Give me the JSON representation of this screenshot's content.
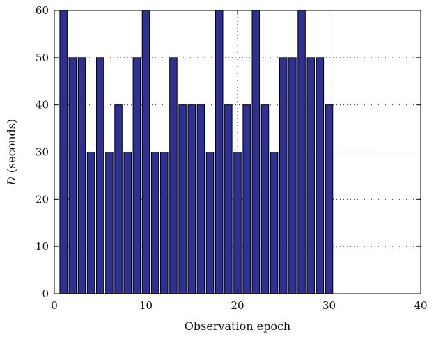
{
  "chart_data": {
    "type": "bar",
    "x": [
      1,
      2,
      3,
      4,
      5,
      6,
      7,
      8,
      9,
      10,
      11,
      12,
      13,
      14,
      15,
      16,
      17,
      18,
      19,
      20,
      21,
      22,
      23,
      24,
      25,
      26,
      27,
      28,
      29,
      30
    ],
    "values": [
      60,
      50,
      50,
      30,
      50,
      30,
      40,
      30,
      50,
      60,
      30,
      30,
      50,
      40,
      40,
      40,
      30,
      60,
      40,
      30,
      40,
      60,
      40,
      30,
      50,
      50,
      60,
      50,
      50,
      40
    ],
    "xlabel": "Observation epoch",
    "ylabel_symbol": "D",
    "ylabel_unit": " (seconds)",
    "xlim": [
      0,
      40
    ],
    "ylim": [
      0,
      60
    ],
    "xticks": [
      0,
      10,
      20,
      30,
      40
    ],
    "yticks": [
      0,
      10,
      20,
      30,
      40,
      50,
      60
    ],
    "grid": true,
    "colors": {
      "bar_fill": "#2e3192",
      "bar_edge": "#000000",
      "grid": "#333333"
    }
  }
}
